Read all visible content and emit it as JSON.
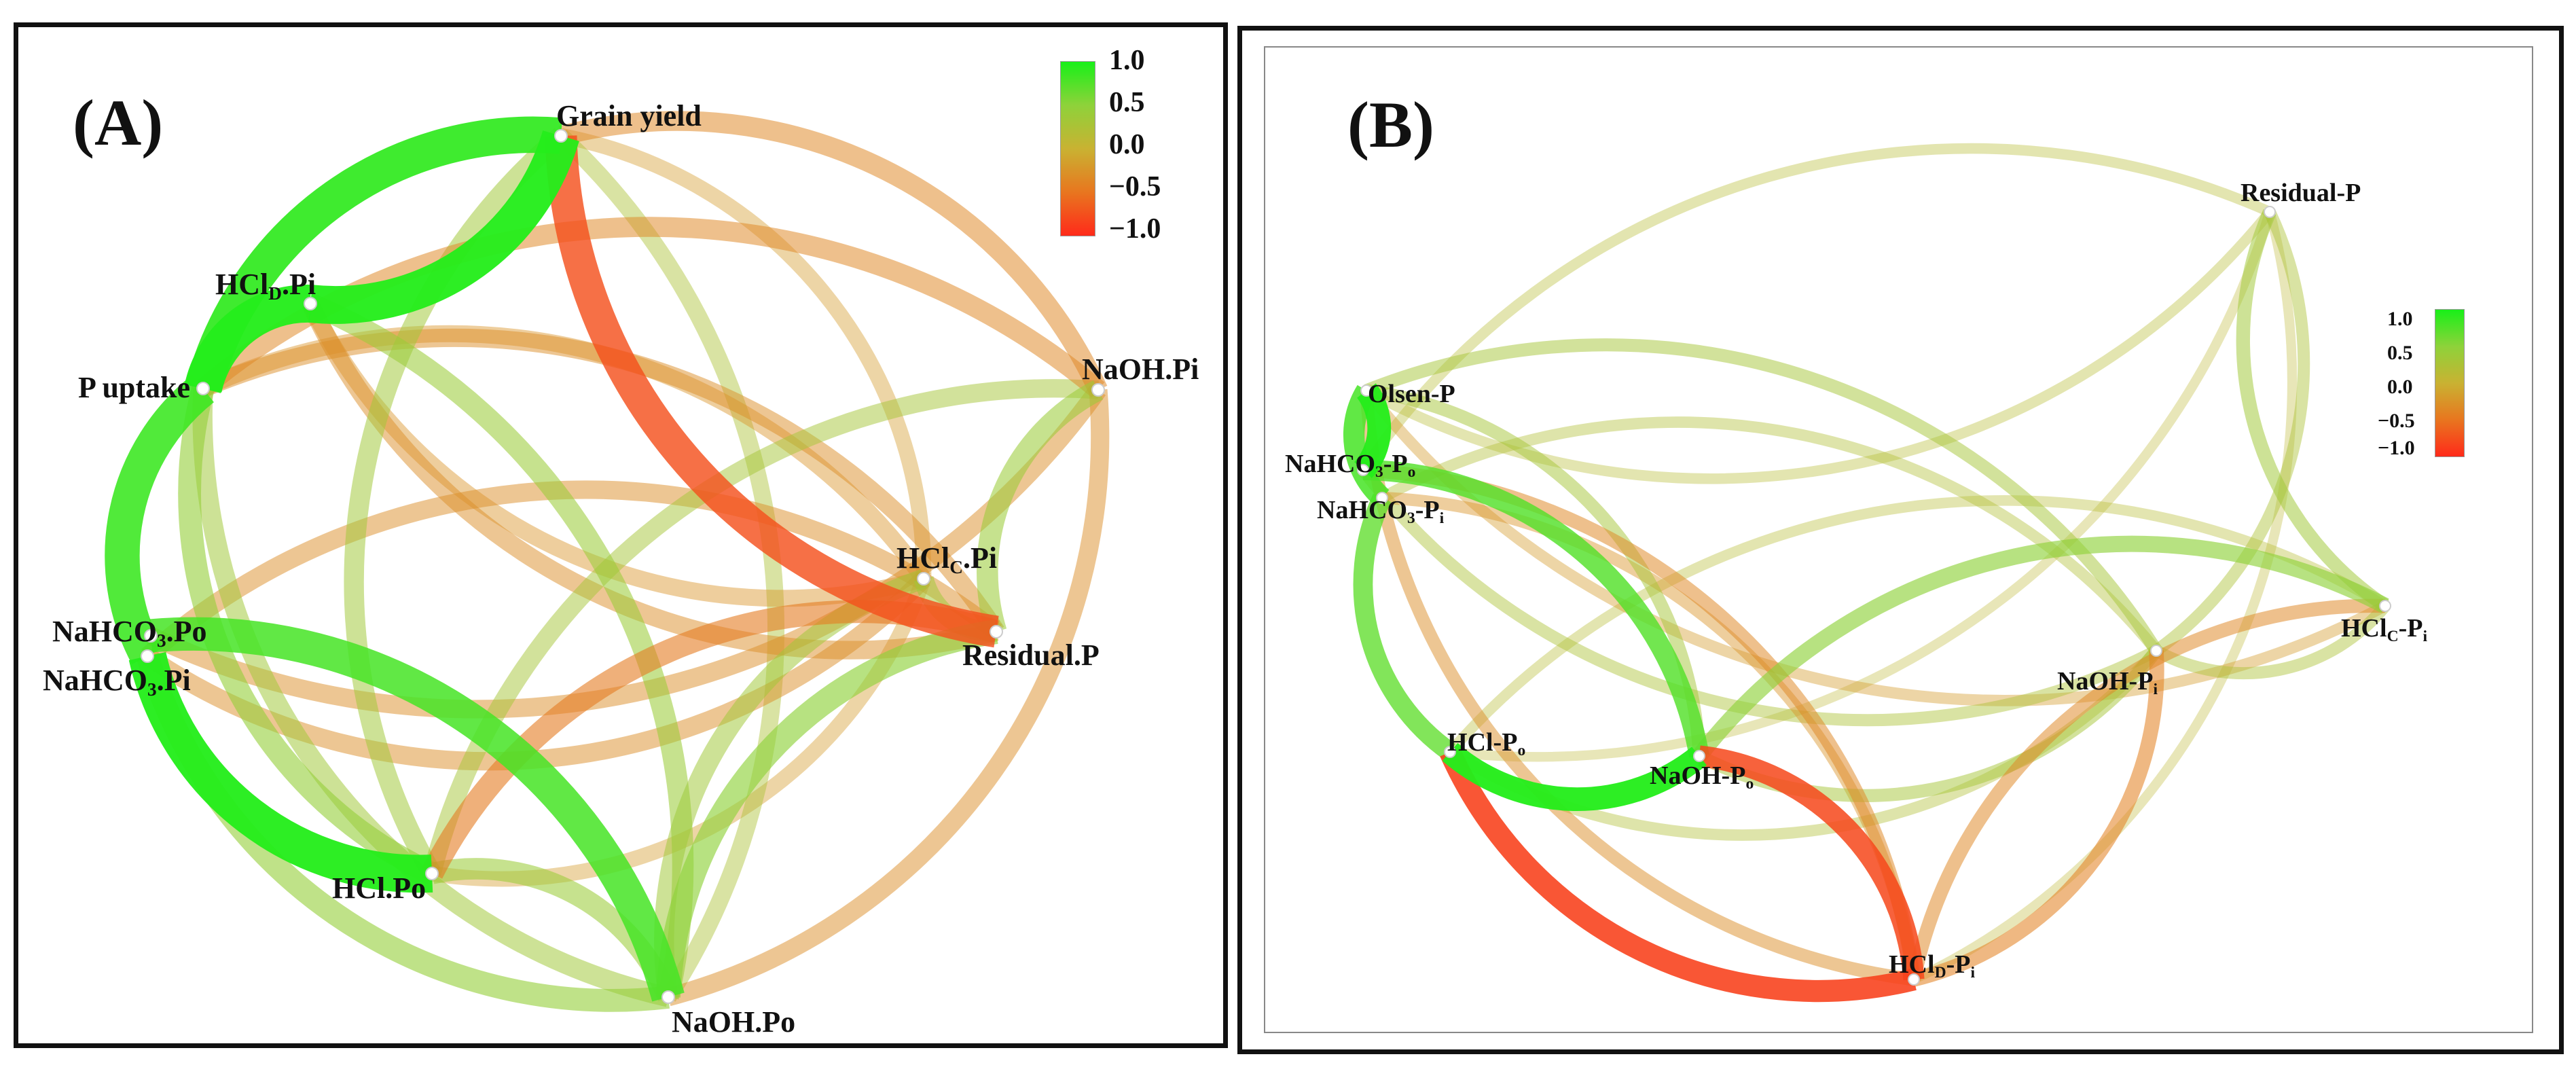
{
  "colorscale": {
    "min": -1.0,
    "max": 1.0,
    "stops": [
      {
        "value": -1.0,
        "color": "#ff2a1a"
      },
      {
        "value": -0.5,
        "color": "#e8761f"
      },
      {
        "value": 0.0,
        "color": "#c9b232"
      },
      {
        "value": 0.5,
        "color": "#8ed23a"
      },
      {
        "value": 1.0,
        "color": "#18f018"
      }
    ]
  },
  "panel_a": {
    "label": "(A)",
    "legend_ticks": [
      "1.0",
      "0.5",
      "0.0",
      "−0.5",
      "−1.0"
    ],
    "nodes": [
      {
        "id": "grain",
        "text": "Grain yield",
        "sub": "",
        "rest": ""
      },
      {
        "id": "hcld",
        "text": "HCl",
        "sub": "D",
        "rest": ".Pi"
      },
      {
        "id": "puptake",
        "text": "P uptake",
        "sub": "",
        "rest": ""
      },
      {
        "id": "naohpi",
        "text": "NaOH.Pi",
        "sub": "",
        "rest": ""
      },
      {
        "id": "hclc",
        "text": "HCl",
        "sub": "C",
        "rest": ".Pi"
      },
      {
        "id": "resid",
        "text": "Residual.P",
        "sub": "",
        "rest": ""
      },
      {
        "id": "nahco3po",
        "text": "NaHCO",
        "sub": "3",
        "rest": ".Po"
      },
      {
        "id": "nahco3pi",
        "text": "NaHCO",
        "sub": "3",
        "rest": ".Pi"
      },
      {
        "id": "hclpo",
        "text": "HCl.Po",
        "sub": "",
        "rest": ""
      },
      {
        "id": "naohpo",
        "text": "NaOH.Po",
        "sub": "",
        "rest": ""
      }
    ],
    "edges": [
      {
        "from": "puptake",
        "to": "grain",
        "r": 0.9
      },
      {
        "from": "hcld",
        "to": "grain",
        "r": 0.95
      },
      {
        "from": "puptake",
        "to": "hcld",
        "r": 0.95
      },
      {
        "from": "puptake",
        "to": "nahco3pi",
        "r": 0.85
      },
      {
        "from": "nahco3po",
        "to": "naohpo",
        "r": 0.8
      },
      {
        "from": "nahco3pi",
        "to": "hclpo",
        "r": 0.95
      },
      {
        "from": "grain",
        "to": "resid",
        "r": -0.75
      },
      {
        "from": "grain",
        "to": "hclc",
        "r": -0.2
      },
      {
        "from": "grain",
        "to": "naohpi",
        "r": -0.35
      },
      {
        "from": "grain",
        "to": "hclpo",
        "r": 0.35
      },
      {
        "from": "grain",
        "to": "naohpo",
        "r": 0.25
      },
      {
        "from": "hcld",
        "to": "resid",
        "r": -0.3
      },
      {
        "from": "hcld",
        "to": "hclc",
        "r": -0.25
      },
      {
        "from": "hcld",
        "to": "naohpo",
        "r": 0.4
      },
      {
        "from": "puptake",
        "to": "resid",
        "r": -0.3
      },
      {
        "from": "puptake",
        "to": "hclc",
        "r": -0.25
      },
      {
        "from": "puptake",
        "to": "naohpi",
        "r": -0.35
      },
      {
        "from": "puptake",
        "to": "hclpo",
        "r": 0.45
      },
      {
        "from": "puptake",
        "to": "naohpo",
        "r": 0.35
      },
      {
        "from": "nahco3po",
        "to": "naohpi",
        "r": -0.3
      },
      {
        "from": "nahco3pi",
        "to": "resid",
        "r": -0.3
      },
      {
        "from": "nahco3pi",
        "to": "hclc",
        "r": -0.3
      },
      {
        "from": "hclpo",
        "to": "resid",
        "r": -0.45
      },
      {
        "from": "hclpo",
        "to": "naohpi",
        "r": 0.3
      },
      {
        "from": "hclpo",
        "to": "hclc",
        "r": -0.2
      },
      {
        "from": "naohpo",
        "to": "resid",
        "r": 0.5
      },
      {
        "from": "naohpo",
        "to": "naohpi",
        "r": -0.3
      },
      {
        "from": "naohpo",
        "to": "hclc",
        "r": 0.35
      },
      {
        "from": "naohpi",
        "to": "resid",
        "r": 0.4
      },
      {
        "from": "hclc",
        "to": "resid",
        "r": 0.35
      },
      {
        "from": "hclpo",
        "to": "naohpo",
        "r": 0.4
      },
      {
        "from": "nahco3pi",
        "to": "naohpo",
        "r": 0.45
      }
    ]
  },
  "panel_b": {
    "label": "(B)",
    "legend_ticks": [
      "1.0",
      "0.5",
      "0.0",
      "−0.5",
      "−1.0"
    ],
    "nodes": [
      {
        "id": "residual",
        "text": "Residual-P",
        "sub": "",
        "rest": "",
        "sub2": ""
      },
      {
        "id": "olsen",
        "text": "Olsen-P",
        "sub": "",
        "rest": "",
        "sub2": ""
      },
      {
        "id": "nahco3po",
        "text": "NaHCO",
        "sub": "3",
        "rest": "-P",
        "sub2": "o"
      },
      {
        "id": "nahco3pi",
        "text": "NaHCO",
        "sub": "3",
        "rest": "-P",
        "sub2": "i"
      },
      {
        "id": "hclc",
        "text": "HCl",
        "sub": "C",
        "rest": "-P",
        "sub2": "i"
      },
      {
        "id": "naohpi",
        "text": "NaOH-P",
        "sub": "i",
        "rest": "",
        "sub2": ""
      },
      {
        "id": "hclpo",
        "text": "HCl-P",
        "sub": "o",
        "rest": "",
        "sub2": ""
      },
      {
        "id": "naohpo",
        "text": "NaOH-P",
        "sub": "o",
        "rest": "",
        "sub2": ""
      },
      {
        "id": "hcld",
        "text": "HCl",
        "sub": "D",
        "rest": "-P",
        "sub2": "i"
      }
    ],
    "edges": [
      {
        "from": "olsen",
        "to": "nahco3po",
        "r": 0.95
      },
      {
        "from": "olsen",
        "to": "nahco3pi",
        "r": 0.8
      },
      {
        "from": "nahco3po",
        "to": "naohpo",
        "r": 0.75
      },
      {
        "from": "nahco3pi",
        "to": "hclpo",
        "r": 0.7
      },
      {
        "from": "hclpo",
        "to": "naohpo",
        "r": 0.95
      },
      {
        "from": "hclpo",
        "to": "hcld",
        "r": -0.85
      },
      {
        "from": "naohpo",
        "to": "hcld",
        "r": -0.8
      },
      {
        "from": "hcld",
        "to": "naohpi",
        "r": -0.4
      },
      {
        "from": "hcld",
        "to": "hclc",
        "r": -0.35
      },
      {
        "from": "naohpo",
        "to": "hclc",
        "r": 0.5
      },
      {
        "from": "residual",
        "to": "hclc",
        "r": 0.35
      },
      {
        "from": "residual",
        "to": "naohpi",
        "r": 0.25
      },
      {
        "from": "residual",
        "to": "olsen",
        "r": 0.15
      },
      {
        "from": "residual",
        "to": "nahco3po",
        "r": 0.15
      },
      {
        "from": "residual",
        "to": "hclpo",
        "r": 0.1
      },
      {
        "from": "olsen",
        "to": "naohpi",
        "r": 0.3
      },
      {
        "from": "olsen",
        "to": "hclc",
        "r": -0.2
      },
      {
        "from": "olsen",
        "to": "hcld",
        "r": -0.3
      },
      {
        "from": "olsen",
        "to": "naohpo",
        "r": 0.3
      },
      {
        "from": "nahco3po",
        "to": "naohpi",
        "r": 0.25
      },
      {
        "from": "nahco3po",
        "to": "hcld",
        "r": -0.35
      },
      {
        "from": "nahco3pi",
        "to": "naohpi",
        "r": 0.2
      },
      {
        "from": "nahco3pi",
        "to": "hcld",
        "r": -0.25
      },
      {
        "from": "hclpo",
        "to": "naohpi",
        "r": 0.2
      },
      {
        "from": "hclpo",
        "to": "hclc",
        "r": 0.15
      },
      {
        "from": "naohpo",
        "to": "naohpi",
        "r": 0.3
      },
      {
        "from": "naohpi",
        "to": "hclc",
        "r": 0.25
      },
      {
        "from": "hcld",
        "to": "residual",
        "r": 0.1
      }
    ]
  }
}
